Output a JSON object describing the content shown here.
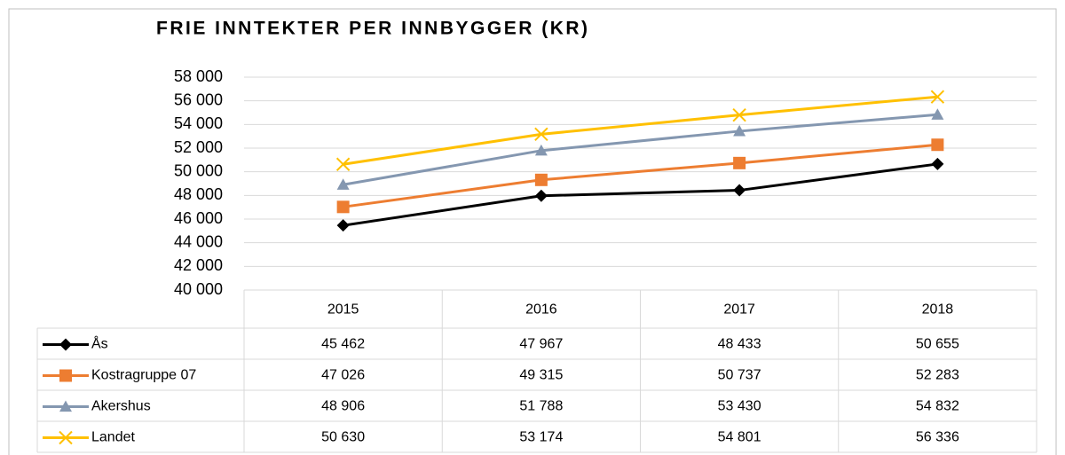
{
  "chart_data": {
    "type": "line",
    "title": "FRIE INNTEKTER PER INNBYGGER (KR)",
    "categories": [
      "2015",
      "2016",
      "2017",
      "2018"
    ],
    "series": [
      {
        "name": "Ås",
        "color": "#000000",
        "marker": "diamond",
        "values": [
          45462,
          47967,
          48433,
          50655
        ],
        "value_labels": [
          "45 462",
          "47 967",
          "48 433",
          "50 655"
        ]
      },
      {
        "name": "Kostragruppe 07",
        "color": "#ed7d31",
        "marker": "square",
        "values": [
          47026,
          49315,
          50737,
          52283
        ],
        "value_labels": [
          "47 026",
          "49 315",
          "50 737",
          "52 283"
        ]
      },
      {
        "name": "Akershus",
        "color": "#8497b0",
        "marker": "triangle",
        "values": [
          48906,
          51788,
          53430,
          54832
        ],
        "value_labels": [
          "48 906",
          "51 788",
          "53 430",
          "54 832"
        ]
      },
      {
        "name": "Landet",
        "color": "#ffc000",
        "marker": "x",
        "values": [
          50630,
          53174,
          54801,
          56336
        ],
        "value_labels": [
          "50 630",
          "53 174",
          "54 801",
          "56 336"
        ]
      }
    ],
    "ylim": [
      40000,
      58000
    ],
    "yticks": [
      {
        "value": 40000,
        "label": "40 000"
      },
      {
        "value": 42000,
        "label": "42 000"
      },
      {
        "value": 44000,
        "label": "44 000"
      },
      {
        "value": 46000,
        "label": "46 000"
      },
      {
        "value": 48000,
        "label": "48 000"
      },
      {
        "value": 50000,
        "label": "50 000"
      },
      {
        "value": 52000,
        "label": "52 000"
      },
      {
        "value": 54000,
        "label": "54 000"
      },
      {
        "value": 56000,
        "label": "56 000"
      },
      {
        "value": 58000,
        "label": "58 000"
      }
    ],
    "grid": true
  }
}
